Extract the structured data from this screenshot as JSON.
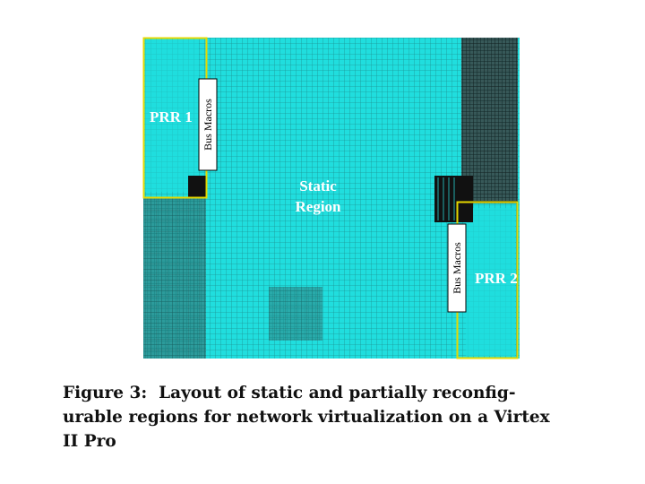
{
  "figure": {
    "labels": {
      "prr1": "PRR 1",
      "bus_macros_1": "Bus Macros",
      "static_region": [
        "Static",
        "Region"
      ],
      "bus_macros_2": "Bus Macros",
      "prr2": "PRR 2"
    },
    "caption": [
      "Figure 3:  Layout of static and partially reconfig-",
      "urable regions for network virtualization on a Virtex",
      "II Pro"
    ]
  }
}
